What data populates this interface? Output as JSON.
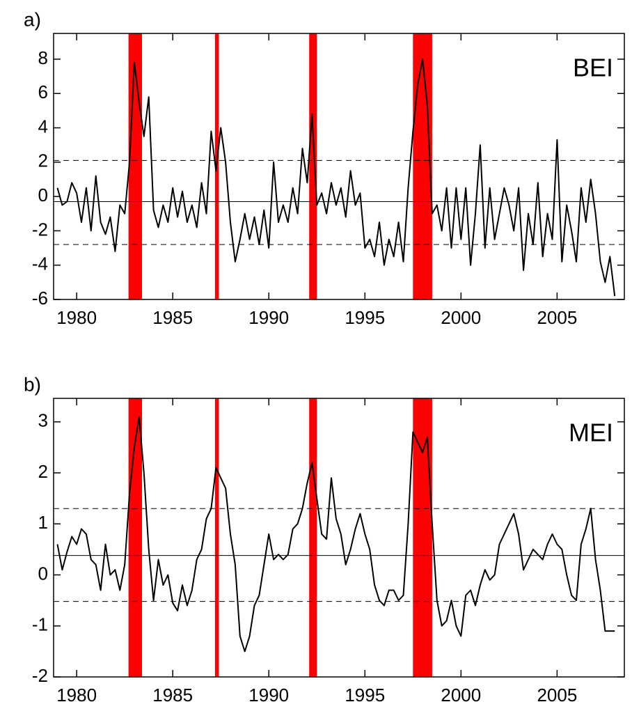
{
  "chart_data": [
    {
      "type": "line",
      "label": "a)",
      "annotation": "BEI",
      "color": "#000000",
      "event_color": "#ff0000",
      "xlim": [
        1978.8,
        2008.5
      ],
      "xticks": [
        1980,
        1985,
        1990,
        1995,
        2000,
        2005
      ],
      "ylim": [
        -6,
        9.5
      ],
      "yticks": [
        -6,
        -4,
        -2,
        0,
        2,
        4,
        6,
        8
      ],
      "mean_line": -0.3,
      "threshold_lines": [
        2.1,
        -2.8
      ],
      "events": [
        [
          1982.7,
          1983.4
        ],
        [
          1987.2,
          1987.4
        ],
        [
          1992.1,
          1992.5
        ],
        [
          1997.5,
          1998.5
        ]
      ],
      "x": [
        1979.0,
        1979.25,
        1979.5,
        1979.75,
        1980.0,
        1980.25,
        1980.5,
        1980.75,
        1981.0,
        1981.25,
        1981.5,
        1981.75,
        1982.0,
        1982.25,
        1982.5,
        1982.75,
        1983.0,
        1983.25,
        1983.5,
        1983.75,
        1984.0,
        1984.25,
        1984.5,
        1984.75,
        1985.0,
        1985.25,
        1985.5,
        1985.75,
        1986.0,
        1986.25,
        1986.5,
        1986.75,
        1987.0,
        1987.25,
        1987.5,
        1987.75,
        1988.0,
        1988.25,
        1988.5,
        1988.75,
        1989.0,
        1989.25,
        1989.5,
        1989.75,
        1990.0,
        1990.25,
        1990.5,
        1990.75,
        1991.0,
        1991.25,
        1991.5,
        1991.75,
        1992.0,
        1992.25,
        1992.5,
        1992.75,
        1993.0,
        1993.25,
        1993.5,
        1993.75,
        1994.0,
        1994.25,
        1994.5,
        1994.75,
        1995.0,
        1995.25,
        1995.5,
        1995.75,
        1996.0,
        1996.25,
        1996.5,
        1996.75,
        1997.0,
        1997.25,
        1997.5,
        1997.75,
        1998.0,
        1998.25,
        1998.5,
        1998.75,
        1999.0,
        1999.25,
        1999.5,
        1999.75,
        2000.0,
        2000.25,
        2000.5,
        2000.75,
        2001.0,
        2001.25,
        2001.5,
        2001.75,
        2002.0,
        2002.25,
        2002.5,
        2002.75,
        2003.0,
        2003.25,
        2003.5,
        2003.75,
        2004.0,
        2004.25,
        2004.5,
        2004.75,
        2005.0,
        2005.25,
        2005.5,
        2005.75,
        2006.0,
        2006.25,
        2006.5,
        2006.75,
        2007.0,
        2007.25,
        2007.5,
        2007.75,
        2008.0
      ],
      "values": [
        0.5,
        -0.5,
        -0.3,
        0.8,
        0.2,
        -1.5,
        0.5,
        -2.0,
        1.2,
        -1.5,
        -2.2,
        -1.2,
        -3.2,
        -0.5,
        -1.0,
        2.0,
        7.8,
        5.5,
        3.5,
        5.8,
        -0.8,
        -1.8,
        -0.5,
        -1.5,
        0.5,
        -1.2,
        0.3,
        -1.5,
        -0.5,
        -1.8,
        0.8,
        -1.0,
        3.8,
        1.5,
        4.0,
        2.0,
        -1.5,
        -3.8,
        -2.5,
        -1.0,
        -2.5,
        -1.2,
        -2.8,
        -0.8,
        -3.0,
        2.0,
        -1.5,
        -0.5,
        -1.5,
        0.5,
        -1.0,
        2.8,
        0.8,
        4.8,
        -0.5,
        0.2,
        -1.0,
        0.8,
        -0.5,
        0.5,
        -1.2,
        1.5,
        -0.5,
        0.2,
        -3.0,
        -2.5,
        -3.5,
        -1.5,
        -4.0,
        -2.5,
        -3.5,
        -1.5,
        -3.8,
        0.5,
        3.8,
        6.5,
        8.0,
        5.3,
        -1.0,
        -0.5,
        -2.0,
        0.5,
        -3.0,
        0.5,
        -2.5,
        0.5,
        -4.0,
        -1.0,
        3.0,
        -3.0,
        0.5,
        -2.5,
        -1.0,
        0.5,
        -0.5,
        -2.0,
        0.5,
        -4.3,
        -1.0,
        -2.8,
        0.8,
        -3.5,
        -1.0,
        -2.5,
        3.3,
        -3.8,
        -0.5,
        -2.0,
        -3.8,
        0.5,
        -1.5,
        1.0,
        -1.0,
        -3.8,
        -5.0,
        -3.5,
        -5.8
      ]
    },
    {
      "type": "line",
      "label": "b)",
      "annotation": "MEI",
      "color": "#000000",
      "event_color": "#ff0000",
      "xlim": [
        1978.8,
        2008.5
      ],
      "xticks": [
        1980,
        1985,
        1990,
        1995,
        2000,
        2005
      ],
      "ylim": [
        -2,
        3.46
      ],
      "yticks": [
        -2,
        -1,
        0,
        1,
        2,
        3
      ],
      "mean_line": 0.38,
      "threshold_lines": [
        1.3,
        -0.52
      ],
      "events": [
        [
          1982.7,
          1983.4
        ],
        [
          1987.2,
          1987.4
        ],
        [
          1992.1,
          1992.5
        ],
        [
          1997.5,
          1998.5
        ]
      ],
      "x": [
        1979.0,
        1979.25,
        1979.5,
        1979.75,
        1980.0,
        1980.25,
        1980.5,
        1980.75,
        1981.0,
        1981.25,
        1981.5,
        1981.75,
        1982.0,
        1982.25,
        1982.5,
        1982.75,
        1983.0,
        1983.25,
        1983.5,
        1983.75,
        1984.0,
        1984.25,
        1984.5,
        1984.75,
        1985.0,
        1985.25,
        1985.5,
        1985.75,
        1986.0,
        1986.25,
        1986.5,
        1986.75,
        1987.0,
        1987.25,
        1987.5,
        1987.75,
        1988.0,
        1988.25,
        1988.5,
        1988.75,
        1989.0,
        1989.25,
        1989.5,
        1989.75,
        1990.0,
        1990.25,
        1990.5,
        1990.75,
        1991.0,
        1991.25,
        1991.5,
        1991.75,
        1992.0,
        1992.25,
        1992.5,
        1992.75,
        1993.0,
        1993.25,
        1993.5,
        1993.75,
        1994.0,
        1994.25,
        1994.5,
        1994.75,
        1995.0,
        1995.25,
        1995.5,
        1995.75,
        1996.0,
        1996.25,
        1996.5,
        1996.75,
        1997.0,
        1997.25,
        1997.5,
        1997.75,
        1998.0,
        1998.25,
        1998.5,
        1998.75,
        1999.0,
        1999.25,
        1999.5,
        1999.75,
        2000.0,
        2000.25,
        2000.5,
        2000.75,
        2001.0,
        2001.25,
        2001.5,
        2001.75,
        2002.0,
        2002.25,
        2002.5,
        2002.75,
        2003.0,
        2003.25,
        2003.5,
        2003.75,
        2004.0,
        2004.25,
        2004.5,
        2004.75,
        2005.0,
        2005.25,
        2005.5,
        2005.75,
        2006.0,
        2006.25,
        2006.5,
        2006.75,
        2007.0,
        2007.25,
        2007.5,
        2007.75,
        2008.0
      ],
      "values": [
        0.6,
        0.1,
        0.45,
        0.75,
        0.6,
        0.9,
        0.8,
        0.3,
        0.2,
        -0.3,
        0.6,
        0.0,
        0.1,
        -0.3,
        0.2,
        1.6,
        2.5,
        3.1,
        2.0,
        0.5,
        -0.5,
        0.3,
        -0.2,
        0.0,
        -0.55,
        -0.7,
        -0.2,
        -0.6,
        -0.3,
        0.3,
        0.5,
        1.1,
        1.3,
        2.1,
        1.9,
        1.7,
        0.8,
        0.2,
        -1.2,
        -1.5,
        -1.2,
        -0.6,
        -0.4,
        0.2,
        0.8,
        0.3,
        0.4,
        0.3,
        0.4,
        0.9,
        1.0,
        1.3,
        1.8,
        2.2,
        1.5,
        0.8,
        0.7,
        1.9,
        1.1,
        0.8,
        0.2,
        0.5,
        0.9,
        1.2,
        0.8,
        0.5,
        -0.2,
        -0.5,
        -0.6,
        -0.3,
        -0.3,
        -0.5,
        -0.4,
        1.0,
        2.8,
        2.6,
        2.4,
        2.7,
        1.0,
        -0.5,
        -1.0,
        -0.9,
        -0.5,
        -1.0,
        -1.2,
        -0.4,
        -0.3,
        -0.6,
        -0.2,
        0.1,
        -0.1,
        0.0,
        0.6,
        0.8,
        1.0,
        1.2,
        0.8,
        0.1,
        0.3,
        0.5,
        0.4,
        0.3,
        0.6,
        0.8,
        0.6,
        0.5,
        0.0,
        -0.4,
        -0.5,
        0.6,
        0.9,
        1.3,
        0.3,
        -0.3,
        -1.1,
        -1.1,
        -1.1
      ]
    }
  ]
}
